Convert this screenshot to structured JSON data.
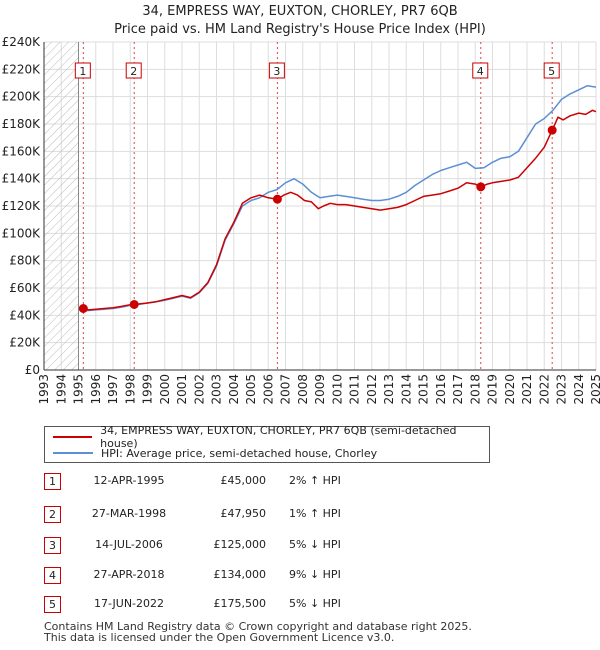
{
  "chart_data": {
    "type": "line",
    "title": "34, EMPRESS WAY, EUXTON, CHORLEY, PR7 6QB",
    "subtitle": "Price paid vs. HM Land Registry's House Price Index (HPI)",
    "xlabel": "",
    "ylabel": "",
    "xlim": [
      1993,
      2025
    ],
    "ylim": [
      0,
      240000
    ],
    "x_ticks": [
      "1993",
      "1994",
      "1995",
      "1996",
      "1997",
      "1998",
      "1999",
      "2000",
      "2001",
      "2002",
      "2003",
      "2004",
      "2005",
      "2006",
      "2007",
      "2008",
      "2009",
      "2010",
      "2011",
      "2012",
      "2013",
      "2014",
      "2015",
      "2016",
      "2017",
      "2018",
      "2019",
      "2020",
      "2021",
      "2022",
      "2023",
      "2024",
      "2025"
    ],
    "y_ticks": [
      {
        "value": 0,
        "label": "£0"
      },
      {
        "value": 20000,
        "label": "£20K"
      },
      {
        "value": 40000,
        "label": "£40K"
      },
      {
        "value": 60000,
        "label": "£60K"
      },
      {
        "value": 80000,
        "label": "£80K"
      },
      {
        "value": 100000,
        "label": "£100K"
      },
      {
        "value": 120000,
        "label": "£120K"
      },
      {
        "value": 140000,
        "label": "£140K"
      },
      {
        "value": 160000,
        "label": "£160K"
      },
      {
        "value": 180000,
        "label": "£180K"
      },
      {
        "value": 200000,
        "label": "£200K"
      },
      {
        "value": 220000,
        "label": "£220K"
      },
      {
        "value": 240000,
        "label": "£240K"
      }
    ],
    "hatch_before": 1995.0,
    "series": [
      {
        "name": "34, EMPRESS WAY, EUXTON, CHORLEY, PR7 6QB (semi-detached house)",
        "color": "#cc0000",
        "x": [
          1995.28,
          1995.6,
          1996.0,
          1996.5,
          1997.0,
          1997.5,
          1998.0,
          1998.23,
          1998.6,
          1999.0,
          1999.5,
          2000.0,
          2000.5,
          2001.0,
          2001.5,
          2002.0,
          2002.5,
          2003.0,
          2003.5,
          2004.0,
          2004.5,
          2005.0,
          2005.5,
          2006.0,
          2006.53,
          2006.9,
          2007.3,
          2007.7,
          2008.1,
          2008.5,
          2008.9,
          2009.2,
          2009.6,
          2010.0,
          2010.5,
          2011.0,
          2011.5,
          2012.0,
          2012.5,
          2013.0,
          2013.5,
          2014.0,
          2014.5,
          2015.0,
          2015.5,
          2016.0,
          2016.5,
          2017.0,
          2017.5,
          2018.0,
          2018.32,
          2018.7,
          2019.0,
          2019.5,
          2020.0,
          2020.5,
          2021.0,
          2021.5,
          2022.0,
          2022.46,
          2022.8,
          2023.1,
          2023.5,
          2024.0,
          2024.4,
          2024.8,
          2025.0
        ],
        "y": [
          45000,
          44000,
          44500,
          45000,
          45500,
          46500,
          47800,
          47950,
          48500,
          49000,
          50000,
          51500,
          53000,
          54500,
          53000,
          57000,
          64000,
          77000,
          96000,
          108000,
          122000,
          126000,
          128000,
          126000,
          125000,
          128000,
          130000,
          128000,
          124000,
          123000,
          118000,
          120000,
          122000,
          121000,
          121000,
          120000,
          119000,
          118000,
          117000,
          118000,
          119000,
          121000,
          124000,
          127000,
          128000,
          129000,
          131000,
          133000,
          137000,
          136000,
          134000,
          136000,
          137000,
          138000,
          139000,
          141000,
          148000,
          155000,
          163000,
          175500,
          185000,
          183000,
          186000,
          188000,
          187000,
          190000,
          189000
        ]
      },
      {
        "name": "HPI: Average price, semi-detached house, Chorley",
        "color": "#5b8fd6",
        "x": [
          1995.0,
          1995.5,
          1996.0,
          1996.5,
          1997.0,
          1997.5,
          1998.0,
          1998.5,
          1999.0,
          1999.5,
          2000.0,
          2000.5,
          2001.0,
          2001.5,
          2002.0,
          2002.5,
          2003.0,
          2003.5,
          2004.0,
          2004.5,
          2005.0,
          2005.5,
          2006.0,
          2006.5,
          2007.0,
          2007.5,
          2008.0,
          2008.5,
          2009.0,
          2009.5,
          2010.0,
          2010.5,
          2011.0,
          2011.5,
          2012.0,
          2012.5,
          2013.0,
          2013.5,
          2014.0,
          2014.5,
          2015.0,
          2015.5,
          2016.0,
          2016.5,
          2017.0,
          2017.5,
          2018.0,
          2018.5,
          2019.0,
          2019.5,
          2020.0,
          2020.5,
          2021.0,
          2021.5,
          2022.0,
          2022.5,
          2023.0,
          2023.5,
          2024.0,
          2024.5,
          2025.0
        ],
        "y": [
          44000,
          43500,
          44000,
          44500,
          45000,
          46000,
          47300,
          48000,
          49000,
          50000,
          51000,
          52500,
          54000,
          52500,
          56500,
          63500,
          76000,
          95000,
          107000,
          120000,
          124000,
          126000,
          130000,
          132000,
          137000,
          140000,
          136000,
          130000,
          126000,
          127000,
          128000,
          127000,
          126000,
          125000,
          124000,
          124000,
          125000,
          127000,
          130000,
          135000,
          139000,
          143000,
          146000,
          148000,
          150000,
          152000,
          147500,
          148000,
          152000,
          155000,
          156000,
          160000,
          170000,
          180000,
          184000,
          190000,
          198000,
          202000,
          205000,
          208000,
          207000
        ]
      }
    ],
    "markers": [
      {
        "id": "1",
        "x": 1995.28,
        "y": 45000
      },
      {
        "id": "2",
        "x": 1998.23,
        "y": 47950
      },
      {
        "id": "3",
        "x": 2006.53,
        "y": 125000
      },
      {
        "id": "4",
        "x": 2018.32,
        "y": 134000
      },
      {
        "id": "5",
        "x": 2022.46,
        "y": 175500
      }
    ]
  },
  "legend": {
    "property_label": "34, EMPRESS WAY, EUXTON, CHORLEY, PR7 6QB (semi-detached house)",
    "hpi_label": "HPI: Average price, semi-detached house, Chorley"
  },
  "sales": [
    {
      "num": "1",
      "date": "12-APR-1995",
      "price": "£45,000",
      "hpi": "2% ↑ HPI"
    },
    {
      "num": "2",
      "date": "27-MAR-1998",
      "price": "£47,950",
      "hpi": "1% ↑ HPI"
    },
    {
      "num": "3",
      "date": "14-JUL-2006",
      "price": "£125,000",
      "hpi": "5% ↓ HPI"
    },
    {
      "num": "4",
      "date": "27-APR-2018",
      "price": "£134,000",
      "hpi": "9% ↓ HPI"
    },
    {
      "num": "5",
      "date": "17-JUN-2022",
      "price": "£175,500",
      "hpi": "5% ↓ HPI"
    }
  ],
  "footer": {
    "line1": "Contains HM Land Registry data © Crown copyright and database right 2025.",
    "line2": "This data is licensed under the Open Government Licence v3.0."
  }
}
